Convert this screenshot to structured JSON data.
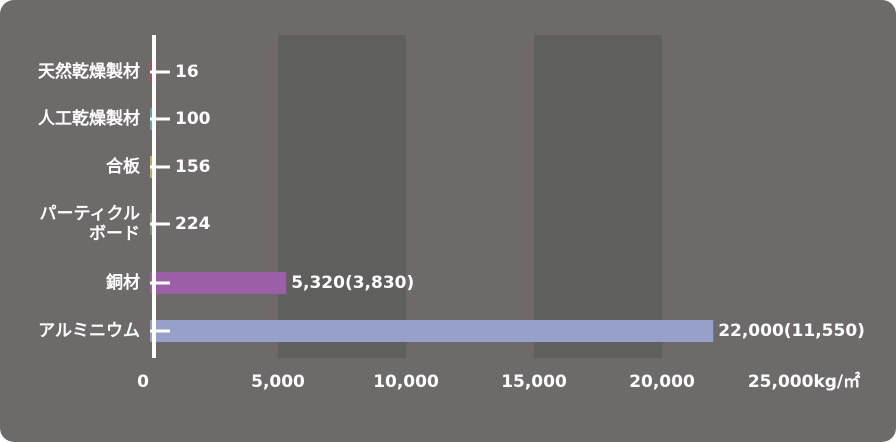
{
  "chart_data": {
    "type": "bar",
    "orientation": "horizontal",
    "categories": [
      "天然乾燥製材",
      "人工乾燥製材",
      "合板",
      "パーティクル\nボード",
      "銅材",
      "アルミニウム"
    ],
    "values": [
      16,
      100,
      156,
      224,
      5320,
      22000
    ],
    "value_labels": [
      "16",
      "100",
      "156",
      "224",
      "5,320(3,830)",
      "22,000(11,550)"
    ],
    "colors": [
      "#e8322c",
      "#5fa9a2",
      "#b3b25f",
      "#6f9d6c",
      "#9c5ea6",
      "#97a0c9"
    ],
    "xlim": [
      0,
      25000
    ],
    "xticks": [
      0,
      {
        "value": 5000,
        "label": "5,000"
      },
      {
        "value": 10000,
        "label": "10,000"
      },
      {
        "value": 15000,
        "label": "15,000"
      },
      {
        "value": 20000,
        "label": "20,000"
      },
      {
        "value": 25000,
        "label": "25,000kg/㎡"
      }
    ],
    "bands": true
  }
}
